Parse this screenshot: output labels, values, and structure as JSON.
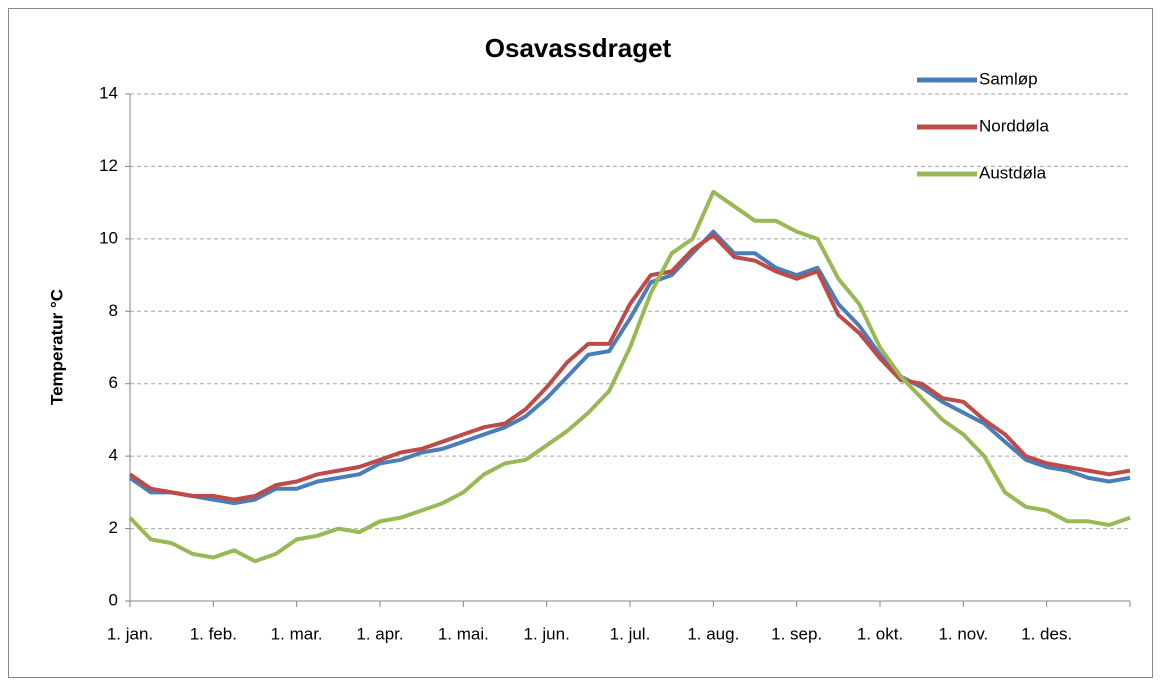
{
  "chart_data": {
    "type": "line",
    "title": "Osavassdraget",
    "y_label": "Temperatur °C",
    "categories": [
      "1. jan.",
      null,
      null,
      null,
      "1. feb.",
      null,
      null,
      null,
      "1. mar.",
      null,
      null,
      null,
      "1. apr.",
      null,
      null,
      null,
      "1. mai.",
      null,
      null,
      null,
      "1. jun.",
      null,
      null,
      null,
      "1. jul.",
      null,
      null,
      null,
      "1. aug.",
      null,
      null,
      null,
      "1. sep.",
      null,
      null,
      null,
      "1. okt.",
      null,
      null,
      null,
      "1. nov.",
      null,
      null,
      null,
      "1. des.",
      null,
      null,
      null,
      null
    ],
    "series": [
      {
        "name": "Samløp",
        "color": "#4a7ebb",
        "values": [
          3.4,
          3.0,
          3.0,
          2.9,
          2.8,
          2.7,
          2.8,
          3.1,
          3.1,
          3.3,
          3.4,
          3.5,
          3.8,
          3.9,
          4.1,
          4.2,
          4.4,
          4.6,
          4.8,
          5.1,
          5.6,
          6.2,
          6.8,
          6.9,
          7.8,
          8.8,
          9.0,
          9.6,
          10.2,
          9.6,
          9.6,
          9.2,
          9.0,
          9.2,
          8.2,
          7.6,
          6.8,
          6.2,
          5.9,
          5.5,
          5.2,
          4.9,
          4.4,
          3.9,
          3.7,
          3.6,
          3.4,
          3.3,
          3.4
        ]
      },
      {
        "name": "Norddøla",
        "color": "#be4b48",
        "values": [
          3.5,
          3.1,
          3.0,
          2.9,
          2.9,
          2.8,
          2.9,
          3.2,
          3.3,
          3.5,
          3.6,
          3.7,
          3.9,
          4.1,
          4.2,
          4.4,
          4.6,
          4.8,
          4.9,
          5.3,
          5.9,
          6.6,
          7.1,
          7.1,
          8.2,
          9.0,
          9.1,
          9.7,
          10.1,
          9.5,
          9.4,
          9.1,
          8.9,
          9.1,
          7.9,
          7.4,
          6.7,
          6.1,
          6.0,
          5.6,
          5.5,
          5.0,
          4.6,
          4.0,
          3.8,
          3.7,
          3.6,
          3.5,
          3.6
        ]
      },
      {
        "name": "Austdøla",
        "color": "#98b954",
        "values": [
          2.3,
          1.7,
          1.6,
          1.3,
          1.2,
          1.4,
          1.1,
          1.3,
          1.7,
          1.8,
          2.0,
          1.9,
          2.2,
          2.3,
          2.5,
          2.7,
          3.0,
          3.5,
          3.8,
          3.9,
          4.3,
          4.7,
          5.2,
          5.8,
          7.0,
          8.5,
          9.6,
          10.0,
          11.3,
          10.9,
          10.5,
          10.5,
          10.2,
          10.0,
          8.9,
          8.2,
          7.0,
          6.2,
          5.6,
          5.0,
          4.6,
          4.0,
          3.0,
          2.6,
          2.5,
          2.2,
          2.2,
          2.1,
          2.3
        ]
      }
    ],
    "ylim": [
      0,
      14
    ],
    "yticks": [
      0,
      2,
      4,
      6,
      8,
      10,
      12,
      14
    ],
    "grid": true,
    "legend": "top-right"
  }
}
